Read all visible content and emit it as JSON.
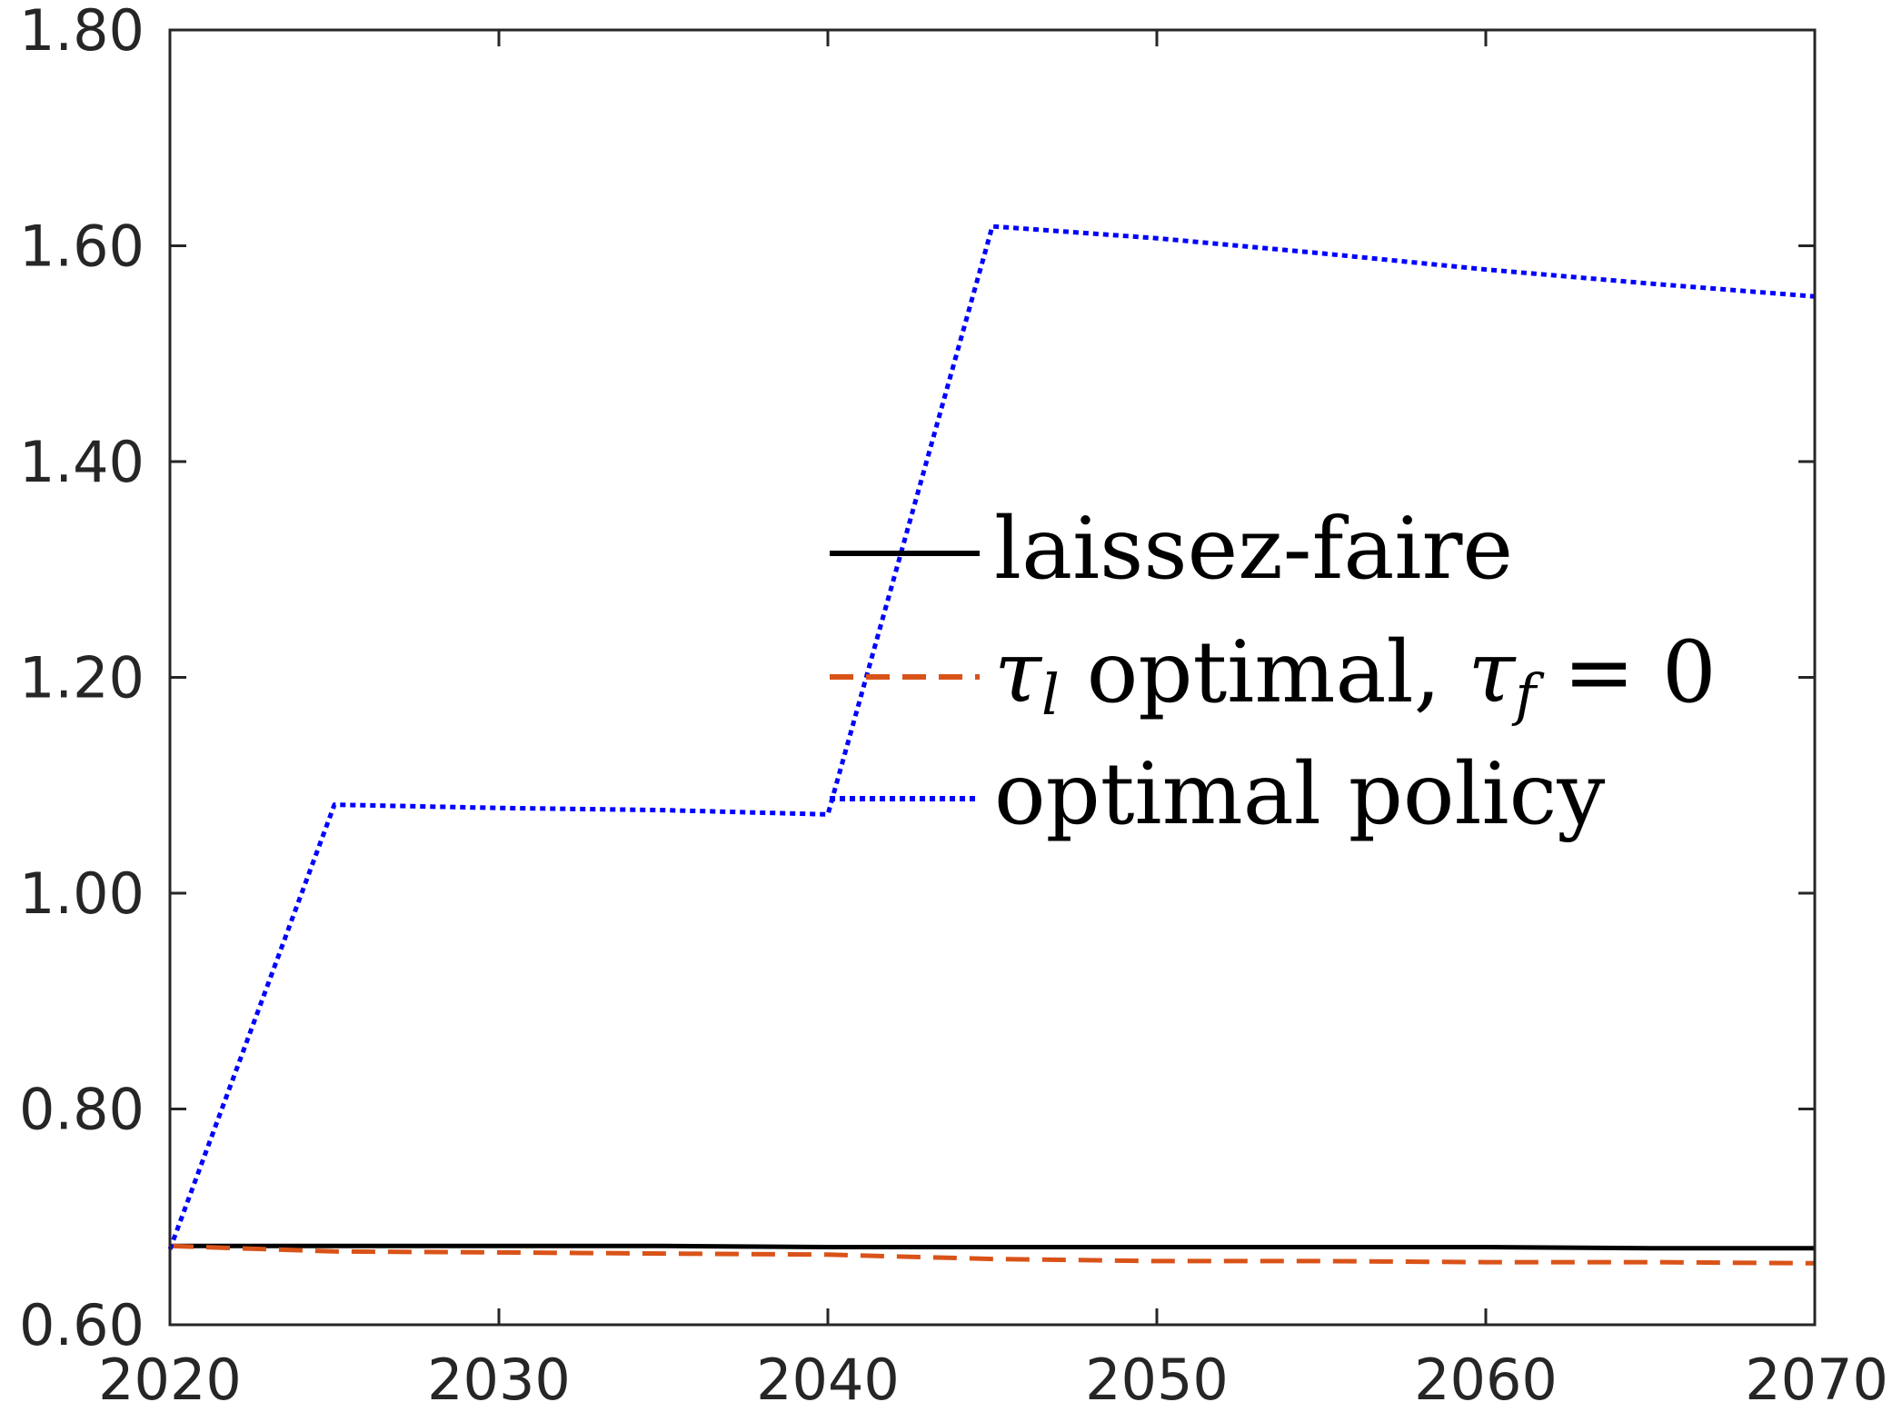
{
  "chart_data": {
    "type": "line",
    "title": "",
    "xlabel": "",
    "ylabel": "",
    "xlim": [
      2020,
      2070
    ],
    "ylim": [
      0.6,
      1.8
    ],
    "xticks": [
      "2020",
      "2030",
      "2040",
      "2050",
      "2060",
      "2070"
    ],
    "yticks": [
      "0.60",
      "0.80",
      "1.00",
      "1.20",
      "1.40",
      "1.60",
      "1.80"
    ],
    "grid": false,
    "legend": "center-right",
    "series": [
      {
        "name": "laissez-faire",
        "color": "#000000",
        "style": "solid",
        "x": [
          2020,
          2025,
          2030,
          2035,
          2040,
          2045,
          2050,
          2055,
          2060,
          2065,
          2070
        ],
        "y": [
          0.673,
          0.673,
          0.673,
          0.673,
          0.672,
          0.672,
          0.672,
          0.672,
          0.672,
          0.671,
          0.671
        ]
      },
      {
        "name": "τl optimal, τf = 0",
        "color": "#D95319",
        "style": "dashed",
        "x": [
          2020,
          2025,
          2030,
          2035,
          2040,
          2045,
          2050,
          2055,
          2060,
          2065,
          2070
        ],
        "y": [
          0.673,
          0.668,
          0.667,
          0.666,
          0.665,
          0.661,
          0.659,
          0.659,
          0.658,
          0.658,
          0.657
        ]
      },
      {
        "name": "optimal policy",
        "color": "#0000FF",
        "style": "dotted",
        "x": [
          2020,
          2025,
          2030,
          2035,
          2040,
          2045,
          2050,
          2055,
          2060,
          2065,
          2070
        ],
        "y": [
          0.67,
          1.082,
          1.079,
          1.077,
          1.073,
          1.618,
          1.607,
          1.593,
          1.578,
          1.565,
          1.553
        ]
      }
    ],
    "legend_items": [
      {
        "label": "laissez-faire"
      },
      {
        "label_parts": {
          "tau": "τ",
          "sub_l": "l",
          "optimal": " optimal, ",
          "sub_f": "f",
          "eq": " = 0"
        }
      },
      {
        "label": "optimal policy"
      }
    ]
  }
}
